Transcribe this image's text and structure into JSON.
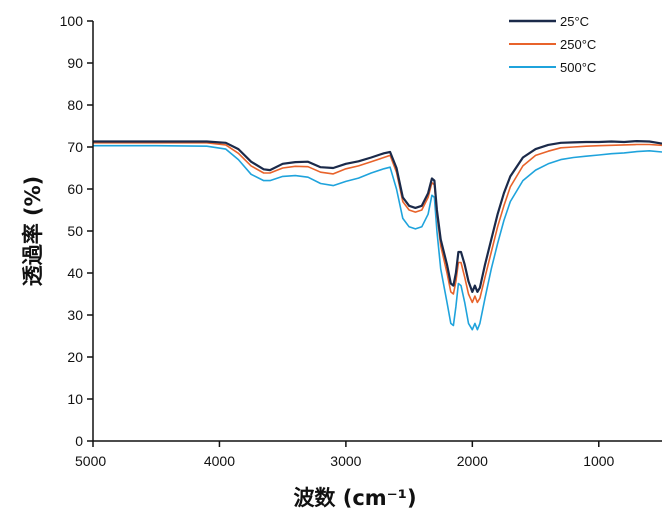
{
  "chart_data": {
    "type": "line",
    "xlabel": "波数 (cm⁻¹)",
    "ylabel": "透過率 (%)",
    "xlim": [
      5000,
      500
    ],
    "ylim": [
      0,
      100
    ],
    "x_reversed": true,
    "x_ticks": [
      5000,
      4000,
      3000,
      2000,
      1000
    ],
    "y_ticks": [
      0,
      10,
      20,
      30,
      40,
      50,
      60,
      70,
      80,
      90,
      100
    ],
    "grid": false,
    "legend_position": "top-right",
    "series": [
      {
        "name": "25°C",
        "color": "#1b2a4a",
        "points": [
          [
            5000,
            71.3
          ],
          [
            4500,
            71.3
          ],
          [
            4100,
            71.3
          ],
          [
            3950,
            71.0
          ],
          [
            3850,
            69.5
          ],
          [
            3750,
            66.5
          ],
          [
            3650,
            64.7
          ],
          [
            3600,
            64.5
          ],
          [
            3500,
            66.0
          ],
          [
            3400,
            66.4
          ],
          [
            3300,
            66.5
          ],
          [
            3200,
            65.2
          ],
          [
            3100,
            65.0
          ],
          [
            3000,
            66.0
          ],
          [
            2900,
            66.6
          ],
          [
            2800,
            67.5
          ],
          [
            2700,
            68.5
          ],
          [
            2650,
            68.8
          ],
          [
            2600,
            65.0
          ],
          [
            2550,
            58.0
          ],
          [
            2500,
            56.0
          ],
          [
            2450,
            55.5
          ],
          [
            2400,
            56.0
          ],
          [
            2350,
            59.0
          ],
          [
            2320,
            62.5
          ],
          [
            2300,
            62.0
          ],
          [
            2280,
            55.0
          ],
          [
            2250,
            48.0
          ],
          [
            2200,
            42.0
          ],
          [
            2170,
            37.5
          ],
          [
            2150,
            37.0
          ],
          [
            2130,
            40.0
          ],
          [
            2110,
            45.0
          ],
          [
            2090,
            45.0
          ],
          [
            2060,
            42.0
          ],
          [
            2030,
            38.0
          ],
          [
            2000,
            35.5
          ],
          [
            1980,
            37.0
          ],
          [
            1960,
            35.5
          ],
          [
            1940,
            36.5
          ],
          [
            1900,
            42.0
          ],
          [
            1850,
            48.0
          ],
          [
            1800,
            54.0
          ],
          [
            1750,
            59.0
          ],
          [
            1700,
            63.0
          ],
          [
            1600,
            67.5
          ],
          [
            1500,
            69.5
          ],
          [
            1400,
            70.5
          ],
          [
            1300,
            71.0
          ],
          [
            1200,
            71.1
          ],
          [
            1100,
            71.2
          ],
          [
            1000,
            71.2
          ],
          [
            900,
            71.3
          ],
          [
            800,
            71.2
          ],
          [
            700,
            71.4
          ],
          [
            600,
            71.3
          ],
          [
            500,
            70.8
          ]
        ]
      },
      {
        "name": "250°C",
        "color": "#e8632b",
        "points": [
          [
            5000,
            71.0
          ],
          [
            4500,
            71.0
          ],
          [
            4100,
            71.0
          ],
          [
            3950,
            70.5
          ],
          [
            3850,
            68.5
          ],
          [
            3750,
            65.5
          ],
          [
            3650,
            63.8
          ],
          [
            3600,
            63.8
          ],
          [
            3500,
            65.0
          ],
          [
            3400,
            65.4
          ],
          [
            3300,
            65.3
          ],
          [
            3200,
            64.0
          ],
          [
            3100,
            63.6
          ],
          [
            3000,
            64.8
          ],
          [
            2900,
            65.5
          ],
          [
            2800,
            66.5
          ],
          [
            2700,
            67.5
          ],
          [
            2650,
            68.0
          ],
          [
            2600,
            64.0
          ],
          [
            2550,
            57.0
          ],
          [
            2500,
            55.0
          ],
          [
            2450,
            54.5
          ],
          [
            2400,
            55.0
          ],
          [
            2350,
            58.0
          ],
          [
            2320,
            61.5
          ],
          [
            2300,
            61.0
          ],
          [
            2280,
            54.0
          ],
          [
            2250,
            46.5
          ],
          [
            2200,
            40.0
          ],
          [
            2170,
            35.5
          ],
          [
            2150,
            35.0
          ],
          [
            2130,
            38.0
          ],
          [
            2110,
            42.5
          ],
          [
            2090,
            42.5
          ],
          [
            2060,
            39.0
          ],
          [
            2030,
            35.0
          ],
          [
            2000,
            33.0
          ],
          [
            1980,
            34.5
          ],
          [
            1960,
            33.0
          ],
          [
            1940,
            34.0
          ],
          [
            1900,
            39.0
          ],
          [
            1850,
            45.0
          ],
          [
            1800,
            51.0
          ],
          [
            1750,
            56.0
          ],
          [
            1700,
            60.5
          ],
          [
            1600,
            65.5
          ],
          [
            1500,
            68.0
          ],
          [
            1400,
            69.0
          ],
          [
            1300,
            69.8
          ],
          [
            1200,
            70.0
          ],
          [
            1100,
            70.2
          ],
          [
            1000,
            70.3
          ],
          [
            900,
            70.4
          ],
          [
            800,
            70.5
          ],
          [
            700,
            70.6
          ],
          [
            600,
            70.6
          ],
          [
            500,
            70.4
          ]
        ]
      },
      {
        "name": "500°C",
        "color": "#1fa3dc",
        "points": [
          [
            5000,
            70.3
          ],
          [
            4500,
            70.3
          ],
          [
            4100,
            70.2
          ],
          [
            3950,
            69.5
          ],
          [
            3850,
            67.0
          ],
          [
            3750,
            63.5
          ],
          [
            3650,
            62.0
          ],
          [
            3600,
            62.0
          ],
          [
            3500,
            63.0
          ],
          [
            3400,
            63.2
          ],
          [
            3300,
            62.8
          ],
          [
            3200,
            61.3
          ],
          [
            3100,
            60.8
          ],
          [
            3000,
            61.8
          ],
          [
            2900,
            62.6
          ],
          [
            2800,
            63.8
          ],
          [
            2700,
            64.8
          ],
          [
            2650,
            65.2
          ],
          [
            2600,
            60.0
          ],
          [
            2550,
            53.0
          ],
          [
            2500,
            51.0
          ],
          [
            2450,
            50.5
          ],
          [
            2400,
            51.0
          ],
          [
            2350,
            54.0
          ],
          [
            2320,
            58.5
          ],
          [
            2300,
            58.0
          ],
          [
            2280,
            50.0
          ],
          [
            2250,
            41.0
          ],
          [
            2200,
            33.0
          ],
          [
            2170,
            28.0
          ],
          [
            2150,
            27.5
          ],
          [
            2130,
            32.0
          ],
          [
            2110,
            37.5
          ],
          [
            2090,
            37.0
          ],
          [
            2060,
            33.0
          ],
          [
            2030,
            28.0
          ],
          [
            2000,
            26.5
          ],
          [
            1980,
            28.0
          ],
          [
            1960,
            26.5
          ],
          [
            1940,
            28.0
          ],
          [
            1900,
            34.0
          ],
          [
            1850,
            41.0
          ],
          [
            1800,
            47.0
          ],
          [
            1750,
            52.5
          ],
          [
            1700,
            57.0
          ],
          [
            1600,
            62.0
          ],
          [
            1500,
            64.5
          ],
          [
            1400,
            66.0
          ],
          [
            1300,
            67.0
          ],
          [
            1200,
            67.5
          ],
          [
            1100,
            67.8
          ],
          [
            1000,
            68.1
          ],
          [
            900,
            68.4
          ],
          [
            800,
            68.6
          ],
          [
            700,
            68.9
          ],
          [
            600,
            69.1
          ],
          [
            500,
            68.8
          ]
        ]
      }
    ]
  }
}
